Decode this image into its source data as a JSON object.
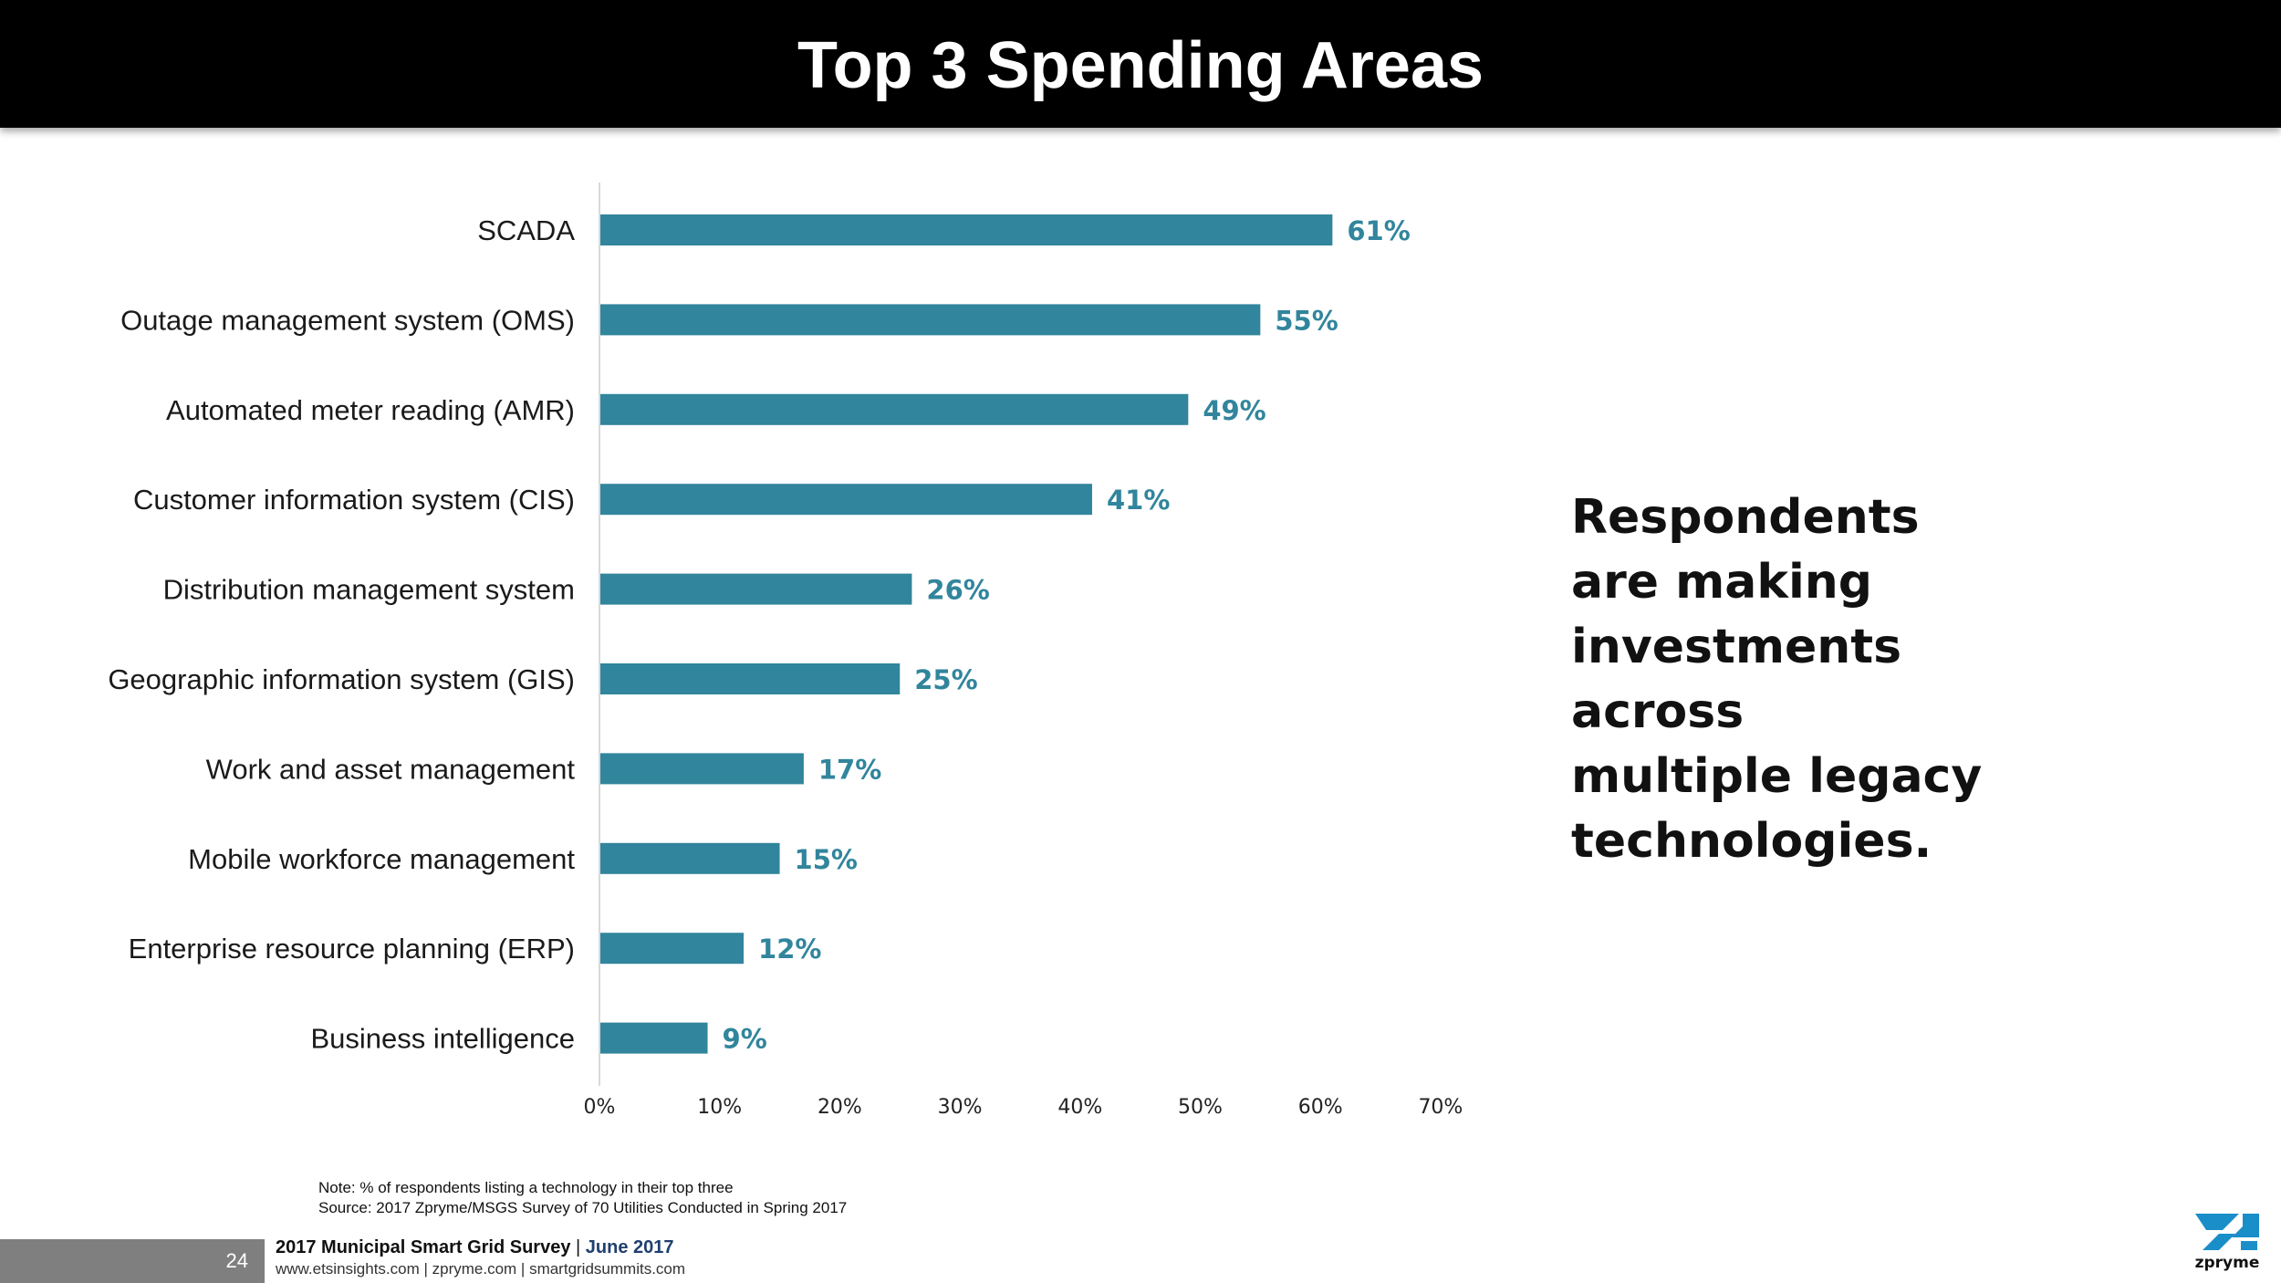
{
  "header": {
    "title": "Top 3 Spending Areas"
  },
  "colors": {
    "bar": "#31859c",
    "value_label": "#31859c",
    "axis": "#d9d9d9",
    "logo": "#1a8ec8"
  },
  "chart_data": {
    "type": "bar",
    "orientation": "horizontal",
    "categories": [
      "SCADA",
      "Outage management system (OMS)",
      "Automated meter reading (AMR)",
      "Customer information system (CIS)",
      "Distribution management system",
      "Geographic information system (GIS)",
      "Work and asset management",
      "Mobile workforce management",
      "Enterprise resource planning (ERP)",
      "Business intelligence"
    ],
    "values": [
      61,
      55,
      49,
      41,
      26,
      25,
      17,
      15,
      12,
      9
    ],
    "value_labels": [
      "61%",
      "55%",
      "49%",
      "41%",
      "26%",
      "25%",
      "17%",
      "15%",
      "12%",
      "9%"
    ],
    "xlim": [
      0,
      70
    ],
    "x_ticks": [
      "0%",
      "10%",
      "20%",
      "30%",
      "40%",
      "50%",
      "60%",
      "70%"
    ],
    "grid": false,
    "legend": "none"
  },
  "callout": {
    "lines": [
      "Respondents",
      "are making",
      "investments",
      "across",
      "multiple legacy",
      "technologies."
    ]
  },
  "notes": {
    "note": "Note: % of respondents listing a technology in their top three",
    "source": "Source: 2017 Zpryme/MSGS Survey of 70 Utilities Conducted in Spring 2017"
  },
  "footer": {
    "page_number": "24",
    "survey_name": "2017 Municipal Smart Grid Survey",
    "separator": " | ",
    "date": "June 2017",
    "links": "www.etsinsights.com | zpryme.com | smartgridsummits.com",
    "logo_text": "zpryme"
  }
}
